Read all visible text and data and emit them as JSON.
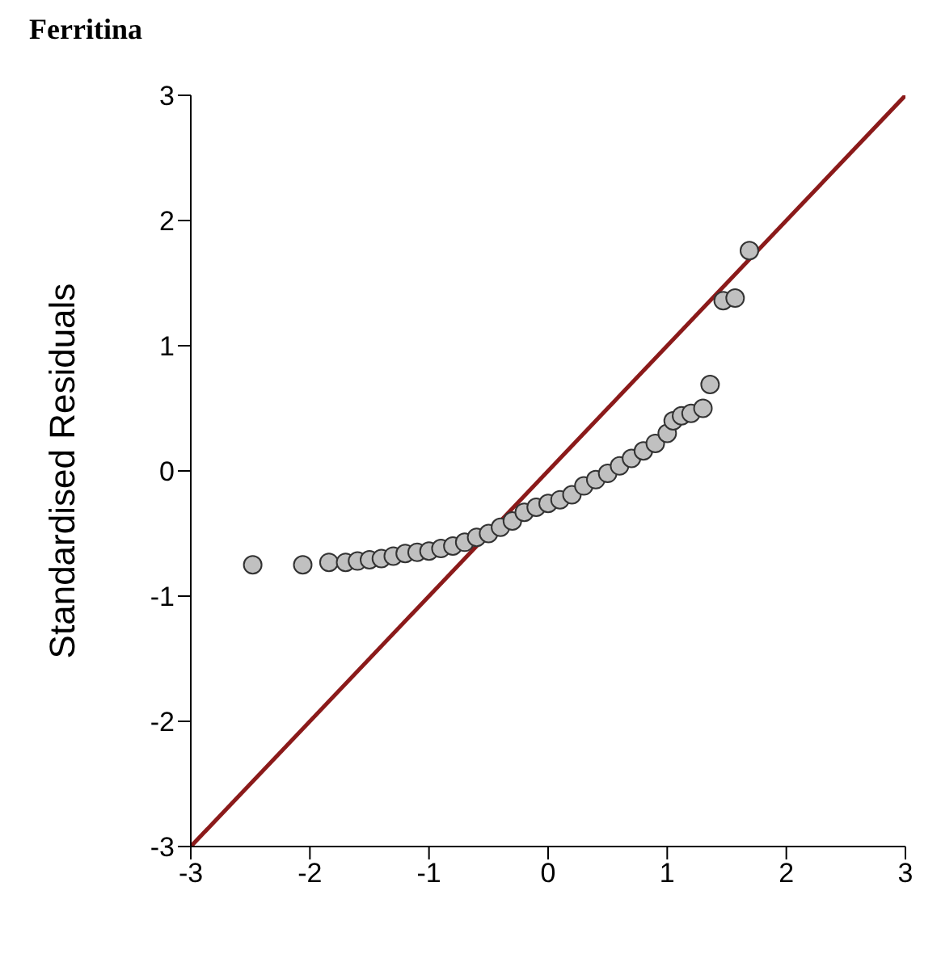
{
  "chart_data": {
    "type": "scatter",
    "title": "Ferritina",
    "ylabel": "Standardised Residuals",
    "xlim": [
      -3,
      3
    ],
    "xticks": [
      -3,
      -2,
      -1,
      0,
      1,
      2,
      3
    ],
    "ylim": [
      -3,
      3
    ],
    "yticks": [
      -3,
      -2,
      -1,
      0,
      1,
      2,
      3
    ],
    "grid": false,
    "legend": false,
    "series": [
      {
        "type": "line",
        "marker": "none",
        "color": "#8b1a1a",
        "x": [
          -3,
          3
        ],
        "values": [
          -3,
          3
        ]
      },
      {
        "marker": "circle",
        "color": "#c0c0c0",
        "x": [
          -2.48,
          -2.06,
          -1.84,
          -1.7,
          -1.6,
          -1.5,
          -1.4,
          -1.3,
          -1.2,
          -1.1,
          -1.0,
          -0.9,
          -0.8,
          -0.7,
          -0.6,
          -0.5,
          -0.4,
          -0.3,
          -0.2,
          -0.1,
          0,
          0.1,
          0.2,
          0.3,
          0.4,
          0.5,
          0.6,
          0.7,
          0.8,
          0.9,
          1.0,
          1.05,
          1.12,
          1.2,
          1.3,
          1.36,
          1.47,
          1.57,
          1.69
        ],
        "values": [
          -0.75,
          -0.75,
          -0.73,
          -0.73,
          -0.72,
          -0.71,
          -0.7,
          -0.68,
          -0.66,
          -0.65,
          -0.64,
          -0.62,
          -0.6,
          -0.57,
          -0.53,
          -0.5,
          -0.45,
          -0.4,
          -0.33,
          -0.29,
          -0.26,
          -0.23,
          -0.19,
          -0.12,
          -0.07,
          -0.02,
          0.04,
          0.1,
          0.16,
          0.22,
          0.3,
          0.4,
          0.44,
          0.46,
          0.5,
          0.69,
          1.36,
          1.38,
          1.76
        ]
      }
    ]
  }
}
